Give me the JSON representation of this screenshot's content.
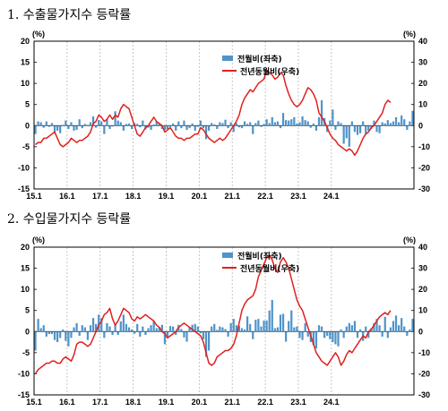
{
  "colors": {
    "bar": "#4f93c9",
    "line": "#e0201f",
    "grid": "#b8b8b8",
    "frame": "#000000"
  },
  "chart_data": [
    {
      "type": "bar+line",
      "title": "1. 수출물가지수 등락률",
      "left_unit": "(%)",
      "right_unit": "(%)",
      "left_ylim": [
        -15,
        20
      ],
      "left_ticks": [
        20,
        15,
        10,
        5,
        0,
        -5,
        -10,
        -15
      ],
      "right_ylim": [
        -30,
        40
      ],
      "right_ticks": [
        40,
        30,
        20,
        10,
        0,
        -10,
        -20,
        -30
      ],
      "x_ticks": [
        "15.1",
        "16.1",
        "17.1",
        "18.1",
        "19.1",
        "20.1",
        "21.1",
        "22.1",
        "23.1",
        "24.1"
      ],
      "grid": "vertical dashed at each year",
      "legend_position": "top-right",
      "legend": [
        "전월비(좌축)",
        "전년동월비(우축)"
      ],
      "series": [
        {
          "name": "전월비(좌축)",
          "axis": "left",
          "type": "bar",
          "values": [
            -2.0,
            1.0,
            0.8,
            -0.5,
            1.0,
            -0.3,
            0.6,
            -1.5,
            -1.2,
            -1.8,
            0.2,
            1.2,
            -0.8,
            0.8,
            -1.2,
            -1.0,
            1.5,
            -0.6,
            0.4,
            0.2,
            0.8,
            2.2,
            -0.5,
            1.3,
            1.0,
            -2.0,
            1.5,
            -0.8,
            -0.2,
            3.4,
            1.2,
            0.8,
            -1.2,
            0.4,
            0.5,
            -0.8,
            0.6,
            0.4,
            -0.4,
            1.2,
            -0.9,
            -0.5,
            -1.0,
            0.3,
            1.0,
            0.5,
            -0.8,
            -1.0,
            -0.8,
            -0.3,
            0.5,
            -1.2,
            1.0,
            -0.6,
            1.2,
            -1.0,
            -0.6,
            0.5,
            -1.2,
            -0.3,
            1.2,
            -0.6,
            -3.2,
            -1.2,
            0.6,
            0.3,
            -0.8,
            0.8,
            0.6,
            1.4,
            -0.6,
            0.8,
            -1.5,
            0.6,
            -0.4,
            -0.6,
            1.0,
            0.4,
            0.8,
            -2.0,
            0.6,
            1.2,
            -0.3,
            0.4,
            1.5,
            0.6,
            2.0,
            0.8,
            1.0,
            -0.6,
            3.0,
            1.3,
            1.2,
            1.5,
            2.0,
            0.5,
            0.8,
            2.2,
            1.3,
            1.0,
            -0.5,
            0.5,
            -1.2,
            2.0,
            6.0,
            1.8,
            -1.5,
            1.2,
            3.8,
            -1.0,
            1.0,
            0.6,
            -4.3,
            -3.0,
            -5.0,
            1.0,
            -1.5,
            -2.2,
            -1.8,
            1.0,
            -2.0,
            -1.2,
            -0.8,
            1.2,
            -1.5,
            -1.8,
            0.8,
            0.5,
            1.3,
            0.6,
            1.0,
            2.0,
            0.8,
            2.4,
            1.5,
            -1.0,
            1.0,
            3.5
          ]
        },
        {
          "name": "전년동월비(우축)",
          "axis": "right",
          "type": "line",
          "values": [
            -9,
            -8,
            -8,
            -6,
            -6,
            -5,
            -4,
            -3,
            -6,
            -9,
            -10,
            -9,
            -8,
            -6,
            -7,
            -8,
            -7,
            -7,
            -6,
            -5,
            -3,
            1,
            2,
            5,
            4,
            2,
            3,
            5,
            3,
            5,
            4,
            8,
            10,
            9,
            8,
            4,
            0,
            -4,
            -5,
            -3,
            -1,
            0,
            2,
            4,
            2,
            1,
            0,
            -3,
            -2,
            -1,
            -3,
            -5,
            -6,
            -6,
            -7,
            -6,
            -6,
            -5,
            -4,
            -4,
            -1,
            -2,
            -4,
            -6,
            -7,
            -8,
            -7,
            -6,
            -7,
            -6,
            -4,
            -2,
            0,
            2,
            5,
            10,
            13,
            15,
            17,
            16,
            18,
            20,
            21,
            22,
            26,
            25,
            24,
            22,
            23,
            25,
            24,
            19,
            15,
            12,
            10,
            9,
            10,
            12,
            15,
            18,
            17,
            15,
            12,
            6,
            4,
            2,
            -1,
            -4,
            -6,
            -7,
            -9,
            -10,
            -11,
            -12,
            -11,
            -12,
            -14,
            -12,
            -9,
            -6,
            -4,
            -3,
            -1,
            0,
            2,
            4,
            6,
            10,
            12,
            11
          ]
        }
      ]
    },
    {
      "type": "bar+line",
      "title": "2. 수입물가지수 등락률",
      "left_unit": "(%)",
      "right_unit": "(%)",
      "left_ylim": [
        -15,
        20
      ],
      "left_ticks": [
        20,
        15,
        10,
        5,
        0,
        -5,
        -10,
        -15
      ],
      "right_ylim": [
        -30,
        40
      ],
      "right_ticks": [
        40,
        30,
        20,
        10,
        0,
        -10,
        -20,
        -30
      ],
      "x_ticks": [
        "15.1",
        "16.1",
        "17.1",
        "18.1",
        "19.1",
        "20.1",
        "21.1",
        "22.1",
        "23.1",
        "24.1"
      ],
      "grid": "vertical dashed at each year",
      "legend_position": "top-right",
      "legend": [
        "전월비(좌축)",
        "전년동월비(우축)"
      ],
      "series": [
        {
          "name": "전월비(좌축)",
          "axis": "left",
          "type": "bar",
          "values": [
            -4.5,
            3.0,
            0.8,
            1.5,
            -1.2,
            -0.6,
            -0.6,
            -2.0,
            -2.5,
            -1.5,
            0.5,
            -2.2,
            -3.5,
            -1.5,
            1.0,
            2.0,
            -1.0,
            1.5,
            1.0,
            -2.0,
            1.5,
            3.2,
            1.8,
            4.0,
            3.2,
            -1.5,
            2.0,
            1.2,
            -0.8,
            1.5,
            -0.8,
            2.4,
            4.0,
            1.8,
            1.0,
            0.5,
            -0.5,
            1.8,
            -1.2,
            1.2,
            -0.8,
            0.8,
            1.5,
            2.5,
            0.8,
            1.0,
            1.6,
            -3.0,
            -1.2,
            1.3,
            1.2,
            -0.8,
            1.6,
            0.6,
            -1.4,
            -2.4,
            1.0,
            1.6,
            1.8,
            1.2,
            -0.4,
            -1.8,
            -6.0,
            -4.5,
            1.2,
            1.8,
            0.4,
            1.2,
            1.0,
            0.6,
            -1.2,
            2.0,
            3.0,
            1.5,
            1.4,
            0.8,
            0.5,
            3.6,
            1.8,
            -1.8,
            2.8,
            3.0,
            1.2,
            2.6,
            2.6,
            5.0,
            7.5,
            0.8,
            1.0,
            4.0,
            4.2,
            -2.4,
            2.5,
            5.0,
            1.0,
            1.2,
            -1.5,
            -2.0,
            2.0,
            -1.2,
            -2.5,
            -3.2,
            -4.0,
            1.5,
            1.2,
            -1.5,
            -1.0,
            -1.8,
            -2.5,
            -3.0,
            -3.5,
            0.5,
            -1.5,
            1.2,
            2.0,
            1.5,
            2.5,
            -1.5,
            0.5,
            -2.2,
            1.2,
            -1.5,
            0.8,
            2.0,
            3.0,
            1.5,
            -1.2,
            3.5,
            -1.5,
            1.0,
            2.5,
            3.8,
            1.5,
            3.2,
            1.2,
            -1.0,
            0.5,
            3.0
          ]
        },
        {
          "name": "전년동월비(우축)",
          "axis": "right",
          "type": "line",
          "values": [
            -20,
            -18,
            -17,
            -16,
            -15,
            -15,
            -14,
            -14,
            -15,
            -15,
            -13,
            -12,
            -13,
            -14,
            -11,
            -6,
            -5,
            -5,
            -6,
            -7,
            -6,
            -3,
            0,
            3,
            5,
            8,
            9,
            11,
            6,
            3,
            5,
            8,
            11,
            10,
            9,
            6,
            5,
            7,
            6,
            7,
            8,
            7,
            6,
            5,
            3,
            2,
            0,
            -1,
            -3,
            -2,
            -1,
            0,
            2,
            3,
            4,
            3,
            2,
            1,
            0,
            -1,
            -2,
            -5,
            -10,
            -15,
            -16,
            -15,
            -12,
            -11,
            -10,
            -9,
            -9,
            -8,
            -6,
            -2,
            4,
            10,
            13,
            15,
            16,
            17,
            20,
            26,
            29,
            32,
            35,
            36,
            34,
            30,
            28,
            33,
            35,
            33,
            30,
            25,
            20,
            15,
            12,
            10,
            6,
            2,
            -2,
            -6,
            -10,
            -12,
            -14,
            -15,
            -16,
            -14,
            -12,
            -10,
            -12,
            -16,
            -14,
            -11,
            -9,
            -10,
            -8,
            -6,
            -4,
            -2,
            -3,
            0,
            1,
            3,
            5,
            7,
            8,
            9,
            8,
            10
          ]
        }
      ]
    }
  ]
}
